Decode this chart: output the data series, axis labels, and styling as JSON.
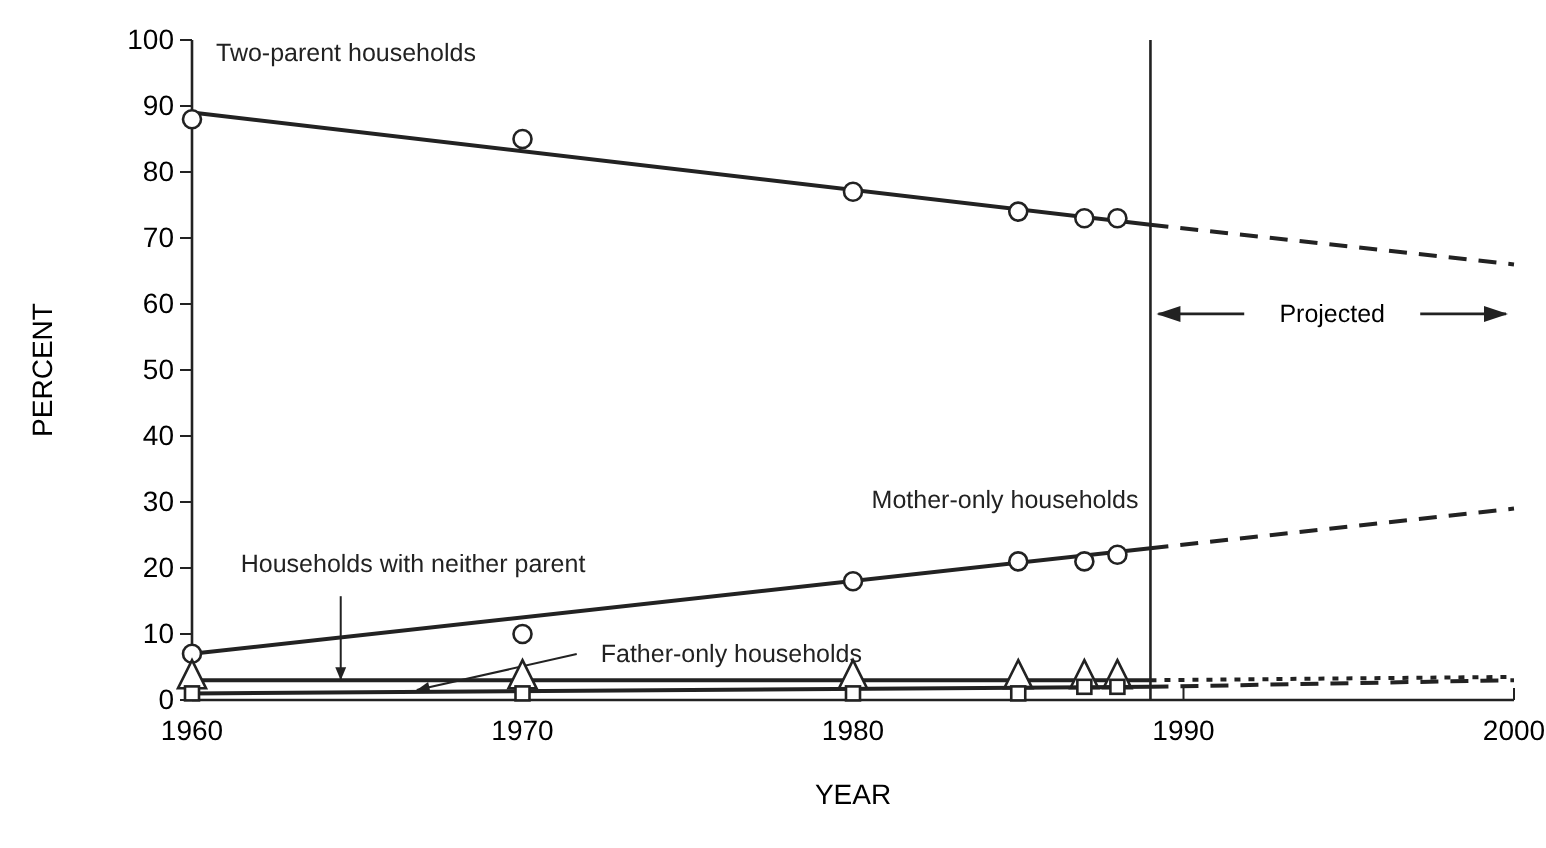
{
  "chart_data": {
    "type": "line",
    "xlabel": "YEAR",
    "ylabel": "PERCENT",
    "xlim": [
      1960,
      2000
    ],
    "ylim": [
      0,
      100
    ],
    "xticks": [
      1960,
      1970,
      1980,
      {
        "value": 1990,
        "label": "1990"
      },
      2000
    ],
    "yticks": [
      0,
      10,
      20,
      30,
      40,
      50,
      60,
      70,
      80,
      90,
      100
    ],
    "series": [
      {
        "name": "Two-parent households",
        "color": "#222222",
        "x": [
          1960,
          1989
        ],
        "values": [
          89,
          72
        ],
        "line_style": "solid"
      },
      {
        "color": "#222222",
        "x": [
          1989,
          2000
        ],
        "values": [
          72,
          66
        ],
        "line_style": "dashed"
      },
      {
        "type": "scatter",
        "marker": "circle",
        "color": "#222222",
        "x": [
          1960,
          1970,
          1980,
          1985,
          1987,
          1988
        ],
        "values": [
          88,
          85,
          77,
          74,
          73,
          73
        ]
      },
      {
        "name": "Mother-only households",
        "color": "#222222",
        "x": [
          1960,
          1989
        ],
        "values": [
          7,
          23
        ],
        "line_style": "solid"
      },
      {
        "color": "#222222",
        "x": [
          1989,
          2000
        ],
        "values": [
          23,
          29
        ],
        "line_style": "dashed"
      },
      {
        "type": "scatter",
        "marker": "circle",
        "color": "#222222",
        "x": [
          1960,
          1970,
          1980,
          1985,
          1987,
          1988
        ],
        "values": [
          7,
          10,
          18,
          21,
          21,
          22
        ]
      },
      {
        "color": "#222222",
        "x": [
          1960,
          1989
        ],
        "values": [
          3,
          3
        ],
        "line_style": "solid"
      },
      {
        "color": "#222222",
        "x": [
          1989,
          2000
        ],
        "values": [
          3,
          3.5
        ],
        "line_style": "dotted"
      },
      {
        "type": "scatter",
        "marker": "triangle",
        "color": "#222222",
        "x": [
          1960,
          1970,
          1980,
          1985,
          1987,
          1988
        ],
        "values": [
          3,
          3,
          3,
          3,
          3,
          3
        ]
      },
      {
        "color": "#222222",
        "x": [
          1960,
          1989
        ],
        "values": [
          1,
          2
        ],
        "line_style": "solid"
      },
      {
        "color": "#222222",
        "x": [
          1989,
          2000
        ],
        "values": [
          2,
          3
        ],
        "line_style": "dashed"
      },
      {
        "type": "scatter",
        "marker": "square",
        "color": "#222222",
        "x": [
          1960,
          1970,
          1980,
          1985,
          1987,
          1988
        ],
        "values": [
          1,
          1,
          1,
          1,
          2,
          2
        ]
      }
    ],
    "annotations": [
      "Projected",
      {
        "text": "Households with neither parent",
        "x": 1964.5,
        "y": 3
      },
      {
        "text": "Father-only households",
        "x": 1966.8,
        "y": 1.5
      }
    ],
    "ref_lines": [
      {
        "axis": "x",
        "value": 1989
      }
    ]
  }
}
